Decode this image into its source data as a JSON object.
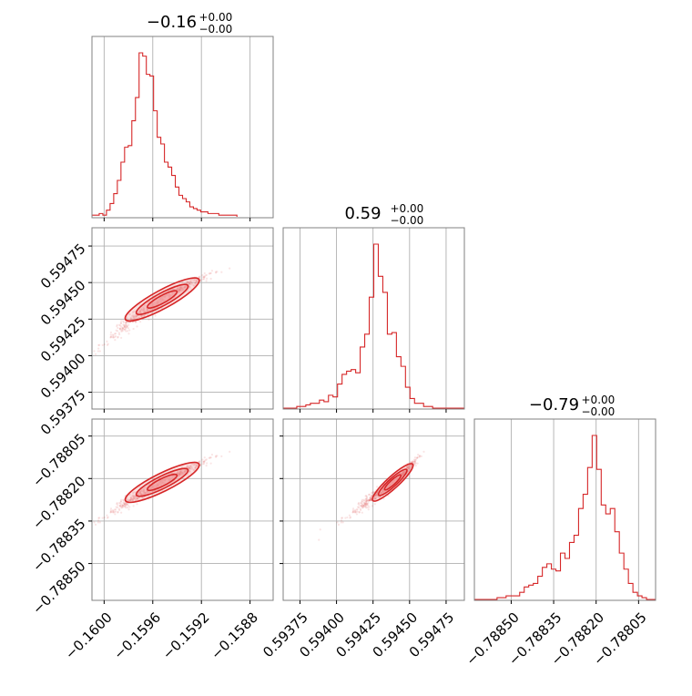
{
  "chart_data": {
    "type": "corner",
    "colors": {
      "accent": "#d62728",
      "fill": "#f4a6a8",
      "grid": "#b0b0b0",
      "frame": "#808080"
    },
    "grid": true,
    "parameters": [
      {
        "title_value": "−0.16",
        "title_sup": "+0.00",
        "title_sub": "−0.00",
        "ticks": [
          -0.16,
          -0.1596,
          -0.1592,
          -0.1588
        ],
        "tick_labels": [
          "−0.1600",
          "−0.1596",
          "−0.1592",
          "−0.1588"
        ],
        "range": [
          -0.1601,
          -0.15861
        ]
      },
      {
        "title_value": "0.59",
        "title_sup": "+0.00",
        "title_sub": "−0.00",
        "ticks": [
          0.59375,
          0.594,
          0.59425,
          0.5945,
          0.59475
        ],
        "tick_labels": [
          "0.59375",
          "0.59400",
          "0.59425",
          "0.59450",
          "0.59475"
        ],
        "range": [
          0.593635,
          0.594875
        ]
      },
      {
        "title_value": "−0.79",
        "title_sup": "+0.00",
        "title_sub": "−0.00",
        "ticks": [
          -0.7885,
          -0.78835,
          -0.7882,
          -0.78805
        ],
        "tick_labels": [
          "−0.78850",
          "−0.78835",
          "−0.78820",
          "−0.78805"
        ],
        "range": [
          -0.78863,
          -0.78799
        ]
      }
    ],
    "histograms": [
      {
        "param": 0,
        "bin_start": -0.1601,
        "bin_width": 2.98e-05,
        "counts": [
          1,
          1,
          2,
          1,
          4,
          8,
          14,
          22,
          33,
          42,
          43,
          58,
          72,
          99,
          97,
          86,
          85,
          64,
          48,
          44,
          33,
          30,
          25,
          18,
          13,
          11,
          9,
          6,
          5,
          4,
          3,
          3,
          2,
          2,
          2,
          1,
          1,
          1,
          1,
          1
        ]
      },
      {
        "param": 1,
        "bin_start": 0.593635,
        "bin_width": 3.1e-05,
        "counts": [
          0,
          0,
          0,
          1,
          1,
          2,
          3,
          3,
          5,
          4,
          8,
          7,
          15,
          21,
          23,
          24,
          22,
          38,
          46,
          69,
          102,
          82,
          72,
          46,
          47,
          32,
          26,
          13,
          6,
          3,
          3,
          1,
          1,
          0,
          0,
          0,
          0,
          0,
          0,
          0
        ]
      },
      {
        "param": 2,
        "bin_start": -0.78863,
        "bin_width": 1.6e-05,
        "counts": [
          0,
          0,
          0,
          0,
          0,
          1,
          1,
          2,
          2,
          2,
          4,
          7,
          8,
          9,
          13,
          18,
          20,
          17,
          16,
          26,
          23,
          32,
          36,
          51,
          59,
          74,
          92,
          73,
          53,
          48,
          51,
          38,
          26,
          17,
          9,
          4,
          2,
          1,
          0,
          0
        ]
      }
    ],
    "relations": [
      {
        "x": 0,
        "y": 1,
        "note": "positive correlation"
      },
      {
        "x": 0,
        "y": 2,
        "note": "positive correlation"
      },
      {
        "x": 1,
        "y": 2,
        "note": "strong positive correlation"
      }
    ]
  }
}
